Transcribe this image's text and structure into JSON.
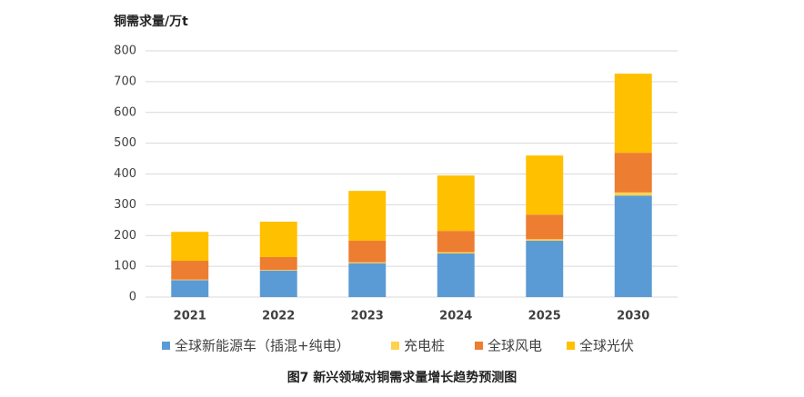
{
  "chart_data": {
    "type": "stacked_bar",
    "y_label": "铜需求量/万t",
    "caption": "图7   新兴领域对铜需求量增长趋势预测图",
    "categories": [
      "2021",
      "2022",
      "2023",
      "2024",
      "2025",
      "2030"
    ],
    "series": [
      {
        "name": "全球新能源车（插混+纯电）",
        "color": "#5b9bd5",
        "values": [
          55,
          86,
          110,
          142,
          183,
          330
        ]
      },
      {
        "name": "充电桩",
        "color": "#ffd24d",
        "values": [
          2,
          2,
          3,
          4,
          5,
          10
        ]
      },
      {
        "name": "全球风电",
        "color": "#ed7d31",
        "values": [
          61,
          42,
          70,
          69,
          80,
          129
        ]
      },
      {
        "name": "全球光伏",
        "color": "#ffc000",
        "values": [
          94,
          115,
          162,
          180,
          192,
          257
        ]
      }
    ],
    "ylim": [
      0,
      800
    ],
    "yticks": [
      0,
      100,
      200,
      300,
      400,
      500,
      600,
      700,
      800
    ],
    "grid": true
  }
}
